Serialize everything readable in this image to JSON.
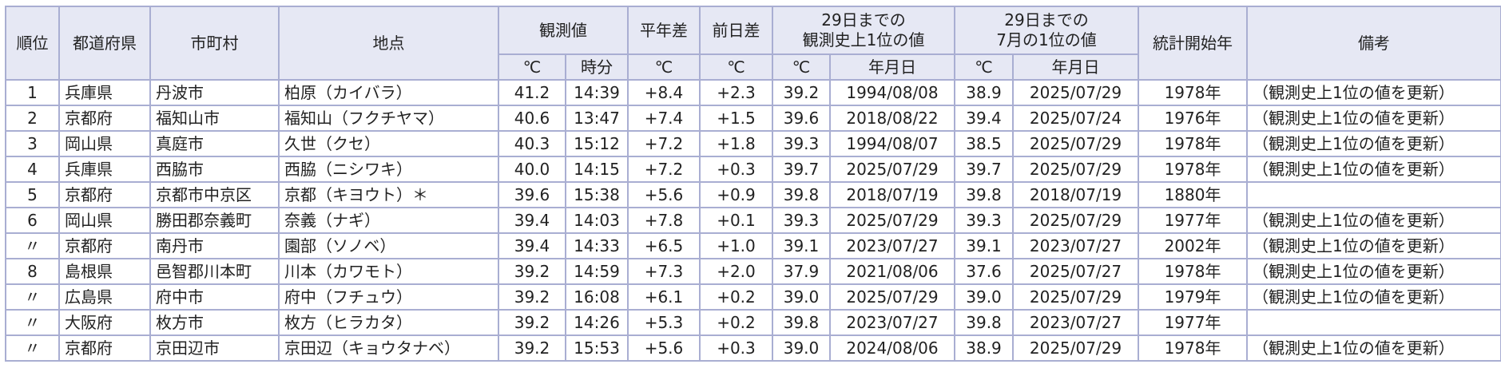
{
  "table": {
    "header": {
      "row1": [
        "順位",
        "都道府県",
        "市町村",
        "地点",
        "観測値",
        "平年差",
        "前日差",
        "29日までの\n観測史上1位の値",
        "29日までの\n7月の1位の値",
        "統計開始年",
        "備考"
      ],
      "row2": [
        "℃",
        "時分",
        "℃",
        "℃",
        "℃",
        "年月日",
        "℃",
        "年月日"
      ]
    },
    "rows": [
      [
        "1",
        "兵庫県",
        "丹波市",
        "柏原（カイバラ）",
        "41.2",
        "14:39",
        "+8.4",
        "+2.3",
        "39.2",
        "1994/08/08",
        "38.9",
        "2025/07/29",
        "1978年",
        "（観測史上1位の値を更新）"
      ],
      [
        "2",
        "京都府",
        "福知山市",
        "福知山（フクチヤマ）",
        "40.6",
        "13:47",
        "+7.4",
        "+1.5",
        "39.6",
        "2018/08/22",
        "39.4",
        "2025/07/24",
        "1976年",
        "（観測史上1位の値を更新）"
      ],
      [
        "3",
        "岡山県",
        "真庭市",
        "久世（クセ）",
        "40.3",
        "15:12",
        "+7.2",
        "+1.8",
        "39.3",
        "1994/08/07",
        "38.5",
        "2025/07/29",
        "1978年",
        "（観測史上1位の値を更新）"
      ],
      [
        "4",
        "兵庫県",
        "西脇市",
        "西脇（ニシワキ）",
        "40.0",
        "14:15",
        "+7.2",
        "+0.3",
        "39.7",
        "2025/07/29",
        "39.7",
        "2025/07/29",
        "1978年",
        "（観測史上1位の値を更新）"
      ],
      [
        "5",
        "京都府",
        "京都市中京区",
        "京都（キヨウト）＊",
        "39.6",
        "15:38",
        "+5.6",
        "+0.9",
        "39.8",
        "2018/07/19",
        "39.8",
        "2018/07/19",
        "1880年",
        null
      ],
      [
        "6",
        "岡山県",
        "勝田郡奈義町",
        "奈義（ナギ）",
        "39.4",
        "14:03",
        "+7.8",
        "+0.1",
        "39.3",
        "2025/07/29",
        "39.3",
        "2025/07/29",
        "1977年",
        "（観測史上1位の値を更新）"
      ],
      [
        "〃",
        "京都府",
        "南丹市",
        "園部（ソノベ）",
        "39.4",
        "14:33",
        "+6.5",
        "+1.0",
        "39.1",
        "2023/07/27",
        "39.1",
        "2023/07/27",
        "2002年",
        "（観測史上1位の値を更新）"
      ],
      [
        "8",
        "島根県",
        "邑智郡川本町",
        "川本（カワモト）",
        "39.2",
        "14:59",
        "+7.3",
        "+2.0",
        "37.9",
        "2021/08/06",
        "37.6",
        "2025/07/27",
        "1978年",
        "（観測史上1位の値を更新）"
      ],
      [
        "〃",
        "広島県",
        "府中市",
        "府中（フチュウ）",
        "39.2",
        "16:08",
        "+6.1",
        "+0.2",
        "39.0",
        "2025/07/29",
        "39.0",
        "2025/07/29",
        "1979年",
        "（観測史上1位の値を更新）"
      ],
      [
        "〃",
        "大阪府",
        "枚方市",
        "枚方（ヒラカタ）",
        "39.2",
        "14:26",
        "+5.3",
        "+0.2",
        "39.8",
        "2023/07/27",
        "39.8",
        "2023/07/27",
        "1977年",
        null
      ],
      [
        "〃",
        "京都府",
        "京田辺市",
        "京田辺（キョウタナベ）",
        "39.2",
        "15:53",
        "+5.6",
        "+0.3",
        "39.0",
        "2024/08/06",
        "38.9",
        "2025/07/29",
        "1978年",
        "（観測史上1位の値を更新）"
      ]
    ]
  }
}
